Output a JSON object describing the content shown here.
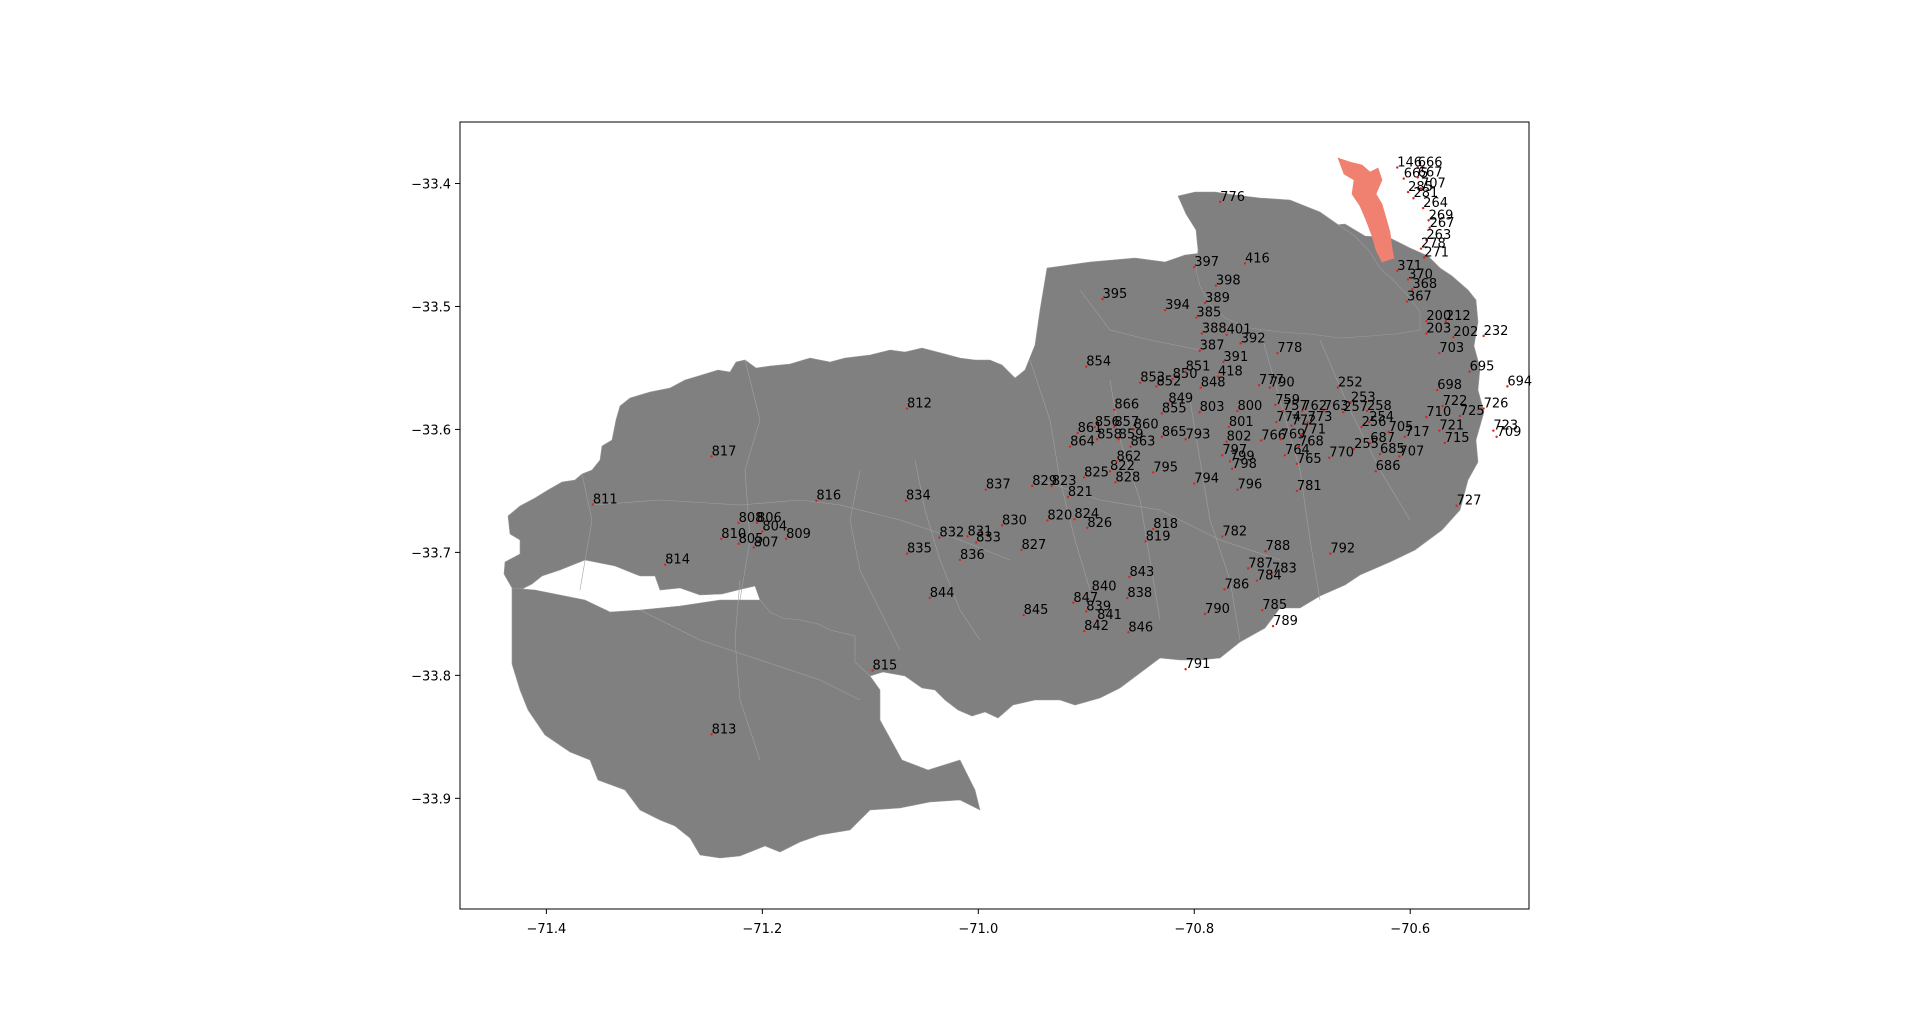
{
  "chart_data": {
    "type": "map",
    "xlim": [
      -71.48,
      -70.49
    ],
    "ylim": [
      -33.99,
      -33.35
    ],
    "x_ticks": [
      -71.4,
      -71.2,
      -71.0,
      -70.8,
      -70.6
    ],
    "y_ticks": [
      -33.4,
      -33.5,
      -33.6,
      -33.7,
      -33.8,
      -33.9
    ],
    "x_tick_labels": [
      "−71.4",
      "−71.2",
      "−71.0",
      "−70.8",
      "−70.6"
    ],
    "y_tick_labels": [
      "−33.4",
      "−33.5",
      "−33.6",
      "−33.7",
      "−33.8",
      "−33.9"
    ],
    "colors": {
      "region_fill": "#808080",
      "highlight_fill": "#f08070",
      "point": "#e02020"
    },
    "labels": [
      {
        "text": "812",
        "x": -71.066,
        "y": -33.583
      },
      {
        "text": "817",
        "x": -71.247,
        "y": -33.622
      },
      {
        "text": "811",
        "x": -71.357,
        "y": -33.661
      },
      {
        "text": "816",
        "x": -71.15,
        "y": -33.658
      },
      {
        "text": "834",
        "x": -71.067,
        "y": -33.658
      },
      {
        "text": "808",
        "x": -71.222,
        "y": -33.676
      },
      {
        "text": "806",
        "x": -71.205,
        "y": -33.676
      },
      {
        "text": "804",
        "x": -71.2,
        "y": -33.683
      },
      {
        "text": "810",
        "x": -71.238,
        "y": -33.689
      },
      {
        "text": "809",
        "x": -71.178,
        "y": -33.689
      },
      {
        "text": "805",
        "x": -71.222,
        "y": -33.693
      },
      {
        "text": "807",
        "x": -71.208,
        "y": -33.696
      },
      {
        "text": "814",
        "x": -71.29,
        "y": -33.71
      },
      {
        "text": "835",
        "x": -71.066,
        "y": -33.701
      },
      {
        "text": "836",
        "x": -71.017,
        "y": -33.706
      },
      {
        "text": "832",
        "x": -71.036,
        "y": -33.688
      },
      {
        "text": "831",
        "x": -71.01,
        "y": -33.687
      },
      {
        "text": "833",
        "x": -71.002,
        "y": -33.692
      },
      {
        "text": "830",
        "x": -70.978,
        "y": -33.678
      },
      {
        "text": "827",
        "x": -70.96,
        "y": -33.698
      },
      {
        "text": "837",
        "x": -70.993,
        "y": -33.649
      },
      {
        "text": "829",
        "x": -70.95,
        "y": -33.646
      },
      {
        "text": "823",
        "x": -70.932,
        "y": -33.646
      },
      {
        "text": "825",
        "x": -70.902,
        "y": -33.639
      },
      {
        "text": "821",
        "x": -70.917,
        "y": -33.655
      },
      {
        "text": "820",
        "x": -70.936,
        "y": -33.674
      },
      {
        "text": "824",
        "x": -70.911,
        "y": -33.673
      },
      {
        "text": "826",
        "x": -70.899,
        "y": -33.68
      },
      {
        "text": "822",
        "x": -70.878,
        "y": -33.634
      },
      {
        "text": "828",
        "x": -70.873,
        "y": -33.643
      },
      {
        "text": "862",
        "x": -70.872,
        "y": -33.626
      },
      {
        "text": "864",
        "x": -70.915,
        "y": -33.614
      },
      {
        "text": "861",
        "x": -70.908,
        "y": -33.603
      },
      {
        "text": "856",
        "x": -70.892,
        "y": -33.598
      },
      {
        "text": "857",
        "x": -70.874,
        "y": -33.598
      },
      {
        "text": "860",
        "x": -70.856,
        "y": -33.6
      },
      {
        "text": "858",
        "x": -70.89,
        "y": -33.608
      },
      {
        "text": "859",
        "x": -70.87,
        "y": -33.608
      },
      {
        "text": "865",
        "x": -70.83,
        "y": -33.606
      },
      {
        "text": "863",
        "x": -70.859,
        "y": -33.614
      },
      {
        "text": "866",
        "x": -70.874,
        "y": -33.584
      },
      {
        "text": "854",
        "x": -70.9,
        "y": -33.549
      },
      {
        "text": "853",
        "x": -70.85,
        "y": -33.562
      },
      {
        "text": "852",
        "x": -70.835,
        "y": -33.565
      },
      {
        "text": "850",
        "x": -70.82,
        "y": -33.559
      },
      {
        "text": "851",
        "x": -70.808,
        "y": -33.553
      },
      {
        "text": "848",
        "x": -70.794,
        "y": -33.566
      },
      {
        "text": "849",
        "x": -70.824,
        "y": -33.579
      },
      {
        "text": "855",
        "x": -70.83,
        "y": -33.587
      },
      {
        "text": "803",
        "x": -70.795,
        "y": -33.586
      },
      {
        "text": "800",
        "x": -70.76,
        "y": -33.585
      },
      {
        "text": "801",
        "x": -70.768,
        "y": -33.598
      },
      {
        "text": "802",
        "x": -70.77,
        "y": -33.61
      },
      {
        "text": "793",
        "x": -70.808,
        "y": -33.608
      },
      {
        "text": "797",
        "x": -70.774,
        "y": -33.621
      },
      {
        "text": "799",
        "x": -70.767,
        "y": -33.626
      },
      {
        "text": "798",
        "x": -70.765,
        "y": -33.632
      },
      {
        "text": "795",
        "x": -70.838,
        "y": -33.635
      },
      {
        "text": "794",
        "x": -70.8,
        "y": -33.644
      },
      {
        "text": "796",
        "x": -70.76,
        "y": -33.649
      },
      {
        "text": "818",
        "x": -70.838,
        "y": -33.681
      },
      {
        "text": "819",
        "x": -70.845,
        "y": -33.691
      },
      {
        "text": "782",
        "x": -70.774,
        "y": -33.687
      },
      {
        "text": "788",
        "x": -70.734,
        "y": -33.699
      },
      {
        "text": "792",
        "x": -70.674,
        "y": -33.701
      },
      {
        "text": "787",
        "x": -70.75,
        "y": -33.713
      },
      {
        "text": "783",
        "x": -70.728,
        "y": -33.717
      },
      {
        "text": "784",
        "x": -70.742,
        "y": -33.723
      },
      {
        "text": "786",
        "x": -70.772,
        "y": -33.73
      },
      {
        "text": "843",
        "x": -70.86,
        "y": -33.72
      },
      {
        "text": "840",
        "x": -70.895,
        "y": -33.732
      },
      {
        "text": "838",
        "x": -70.862,
        "y": -33.737
      },
      {
        "text": "847",
        "x": -70.912,
        "y": -33.741
      },
      {
        "text": "839",
        "x": -70.9,
        "y": -33.748
      },
      {
        "text": "841",
        "x": -70.89,
        "y": -33.755
      },
      {
        "text": "842",
        "x": -70.902,
        "y": -33.764
      },
      {
        "text": "846",
        "x": -70.861,
        "y": -33.765
      },
      {
        "text": "845",
        "x": -70.958,
        "y": -33.751
      },
      {
        "text": "844",
        "x": -71.045,
        "y": -33.737
      },
      {
        "text": "790",
        "x": -70.79,
        "y": -33.75
      },
      {
        "text": "785",
        "x": -70.737,
        "y": -33.747
      },
      {
        "text": "789",
        "x": -70.727,
        "y": -33.76
      },
      {
        "text": "791",
        "x": -70.808,
        "y": -33.795
      },
      {
        "text": "815",
        "x": -71.098,
        "y": -33.796
      },
      {
        "text": "813",
        "x": -71.247,
        "y": -33.848
      },
      {
        "text": "781",
        "x": -70.705,
        "y": -33.65
      },
      {
        "text": "727",
        "x": -70.557,
        "y": -33.662
      },
      {
        "text": "686",
        "x": -70.632,
        "y": -33.634
      },
      {
        "text": "770",
        "x": -70.675,
        "y": -33.623
      },
      {
        "text": "765",
        "x": -70.705,
        "y": -33.628
      },
      {
        "text": "764",
        "x": -70.716,
        "y": -33.621
      },
      {
        "text": "768",
        "x": -70.703,
        "y": -33.614
      },
      {
        "text": "766",
        "x": -70.738,
        "y": -33.609
      },
      {
        "text": "769",
        "x": -70.72,
        "y": -33.608
      },
      {
        "text": "771",
        "x": -70.701,
        "y": -33.604
      },
      {
        "text": "772",
        "x": -70.71,
        "y": -33.597
      },
      {
        "text": "773",
        "x": -70.695,
        "y": -33.594
      },
      {
        "text": "774",
        "x": -70.724,
        "y": -33.594
      },
      {
        "text": "763",
        "x": -70.68,
        "y": -33.585
      },
      {
        "text": "762",
        "x": -70.7,
        "y": -33.585
      },
      {
        "text": "757",
        "x": -70.718,
        "y": -33.585
      },
      {
        "text": "759",
        "x": -70.725,
        "y": -33.58
      },
      {
        "text": "256",
        "x": -70.645,
        "y": -33.598
      },
      {
        "text": "255",
        "x": -70.652,
        "y": -33.616
      },
      {
        "text": "257",
        "x": -70.662,
        "y": -33.586
      },
      {
        "text": "254",
        "x": -70.638,
        "y": -33.594
      },
      {
        "text": "258",
        "x": -70.64,
        "y": -33.585
      },
      {
        "text": "687",
        "x": -70.637,
        "y": -33.611
      },
      {
        "text": "685",
        "x": -70.628,
        "y": -33.62
      },
      {
        "text": "707",
        "x": -70.61,
        "y": -33.622
      },
      {
        "text": "705",
        "x": -70.62,
        "y": -33.602
      },
      {
        "text": "717",
        "x": -70.605,
        "y": -33.606
      },
      {
        "text": "715",
        "x": -70.568,
        "y": -33.611
      },
      {
        "text": "709",
        "x": -70.52,
        "y": -33.606
      },
      {
        "text": "723",
        "x": -70.523,
        "y": -33.601
      },
      {
        "text": "721",
        "x": -70.573,
        "y": -33.601
      },
      {
        "text": "710",
        "x": -70.585,
        "y": -33.59
      },
      {
        "text": "725",
        "x": -70.554,
        "y": -33.589
      },
      {
        "text": "726",
        "x": -70.532,
        "y": -33.583
      },
      {
        "text": "722",
        "x": -70.57,
        "y": -33.581
      },
      {
        "text": "698",
        "x": -70.575,
        "y": -33.568
      },
      {
        "text": "695",
        "x": -70.545,
        "y": -33.553
      },
      {
        "text": "694",
        "x": -70.51,
        "y": -33.565
      },
      {
        "text": "703",
        "x": -70.573,
        "y": -33.538
      },
      {
        "text": "232",
        "x": -70.532,
        "y": -33.524
      },
      {
        "text": "202",
        "x": -70.56,
        "y": -33.525
      },
      {
        "text": "212",
        "x": -70.567,
        "y": -33.512
      },
      {
        "text": "252",
        "x": -70.667,
        "y": -33.566
      },
      {
        "text": "253",
        "x": -70.655,
        "y": -33.578
      },
      {
        "text": "790",
        "x": -70.73,
        "y": -33.566
      },
      {
        "text": "777",
        "x": -70.74,
        "y": -33.564
      },
      {
        "text": "778",
        "x": -70.723,
        "y": -33.538
      },
      {
        "text": "392",
        "x": -70.757,
        "y": -33.53
      },
      {
        "text": "391",
        "x": -70.773,
        "y": -33.545
      },
      {
        "text": "418",
        "x": -70.778,
        "y": -33.557
      },
      {
        "text": "387",
        "x": -70.795,
        "y": -33.536
      },
      {
        "text": "388",
        "x": -70.793,
        "y": -33.522
      },
      {
        "text": "385",
        "x": -70.798,
        "y": -33.509
      },
      {
        "text": "389",
        "x": -70.79,
        "y": -33.497
      },
      {
        "text": "394",
        "x": -70.827,
        "y": -33.503
      },
      {
        "text": "398",
        "x": -70.78,
        "y": -33.483
      },
      {
        "text": "397",
        "x": -70.8,
        "y": -33.468
      },
      {
        "text": "395",
        "x": -70.885,
        "y": -33.494
      },
      {
        "text": "401",
        "x": -70.77,
        "y": -33.523
      },
      {
        "text": "416",
        "x": -70.753,
        "y": -33.465
      },
      {
        "text": "776",
        "x": -70.776,
        "y": -33.415
      },
      {
        "text": "146",
        "x": -70.612,
        "y": -33.387
      },
      {
        "text": "666",
        "x": -70.593,
        "y": -33.387
      },
      {
        "text": "665",
        "x": -70.606,
        "y": -33.396
      },
      {
        "text": "667",
        "x": -70.593,
        "y": -33.395
      },
      {
        "text": "707",
        "x": -70.59,
        "y": -33.404
      },
      {
        "text": "285",
        "x": -70.602,
        "y": -33.407
      },
      {
        "text": "281",
        "x": -70.597,
        "y": -33.412
      },
      {
        "text": "264",
        "x": -70.588,
        "y": -33.42
      },
      {
        "text": "269",
        "x": -70.583,
        "y": -33.43
      },
      {
        "text": "267",
        "x": -70.582,
        "y": -33.436
      },
      {
        "text": "263",
        "x": -70.585,
        "y": -33.446
      },
      {
        "text": "278",
        "x": -70.59,
        "y": -33.453
      },
      {
        "text": "271",
        "x": -70.587,
        "y": -33.46
      },
      {
        "text": "371",
        "x": -70.612,
        "y": -33.471
      },
      {
        "text": "370",
        "x": -70.602,
        "y": -33.478
      },
      {
        "text": "368",
        "x": -70.598,
        "y": -33.486
      },
      {
        "text": "367",
        "x": -70.603,
        "y": -33.496
      },
      {
        "text": "200",
        "x": -70.585,
        "y": -33.512
      },
      {
        "text": "203",
        "x": -70.585,
        "y": -33.522
      }
    ],
    "highlight_regions": 1,
    "grid": false
  }
}
